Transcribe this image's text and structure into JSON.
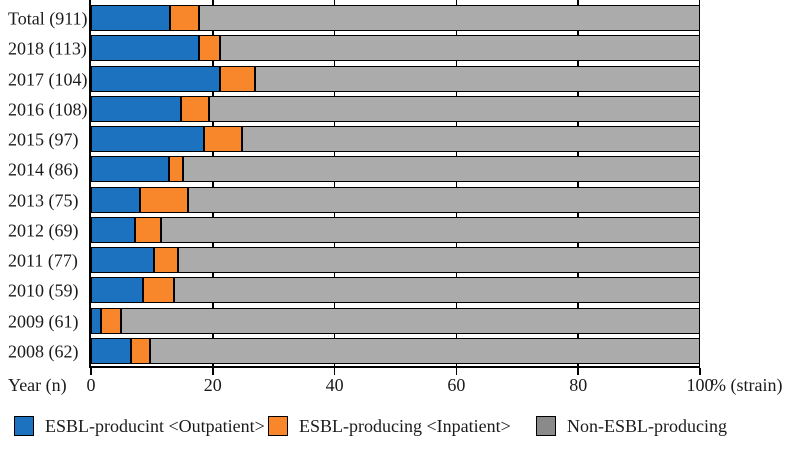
{
  "chart_data": {
    "type": "bar",
    "orientation": "horizontal",
    "stacked": true,
    "title": "",
    "categories": [
      "Total (911)",
      "2018 (113)",
      "2017 (104)",
      "2016 (108)",
      "2015 (97)",
      "2014 (86)",
      "2013 (75)",
      "2012 (69)",
      "2011 (77)",
      "2010 (59)",
      "2009 (61)",
      "2008 (62)"
    ],
    "series": [
      {
        "name": "ESBL-producint <Outpatient>",
        "color": "#1C72BE",
        "values": [
          13.0,
          17.7,
          21.2,
          14.8,
          18.6,
          12.8,
          8.0,
          7.2,
          10.4,
          8.5,
          1.6,
          6.5
        ]
      },
      {
        "name": "ESBL-producing <Inpatient>",
        "color": "#F8862B",
        "values": [
          4.7,
          3.5,
          5.8,
          4.6,
          6.2,
          2.3,
          8.0,
          4.3,
          3.9,
          5.1,
          3.3,
          3.2
        ]
      },
      {
        "name": "Non-ESBL-producing",
        "color": "#ABABAB",
        "values": [
          82.3,
          78.8,
          73.0,
          80.6,
          75.2,
          84.9,
          84.0,
          88.5,
          85.7,
          86.4,
          95.1,
          90.3
        ]
      }
    ],
    "x_ticks": [
      0,
      20,
      40,
      60,
      80,
      100
    ],
    "xlim": [
      0,
      100
    ],
    "grid": "vertical black gridlines at every x tick",
    "legend_position": "bottom"
  },
  "axis": {
    "left_label": "Year (n)",
    "right_label": "% (strain)"
  },
  "legend": {
    "items": [
      {
        "label": "ESBL-producint <Outpatient>",
        "color": "#1C72BE"
      },
      {
        "label": "ESBL-producing <Inpatient>",
        "color": "#F8862B"
      },
      {
        "label": "Non-ESBL-producing",
        "color": "#8A8A8A"
      }
    ]
  }
}
